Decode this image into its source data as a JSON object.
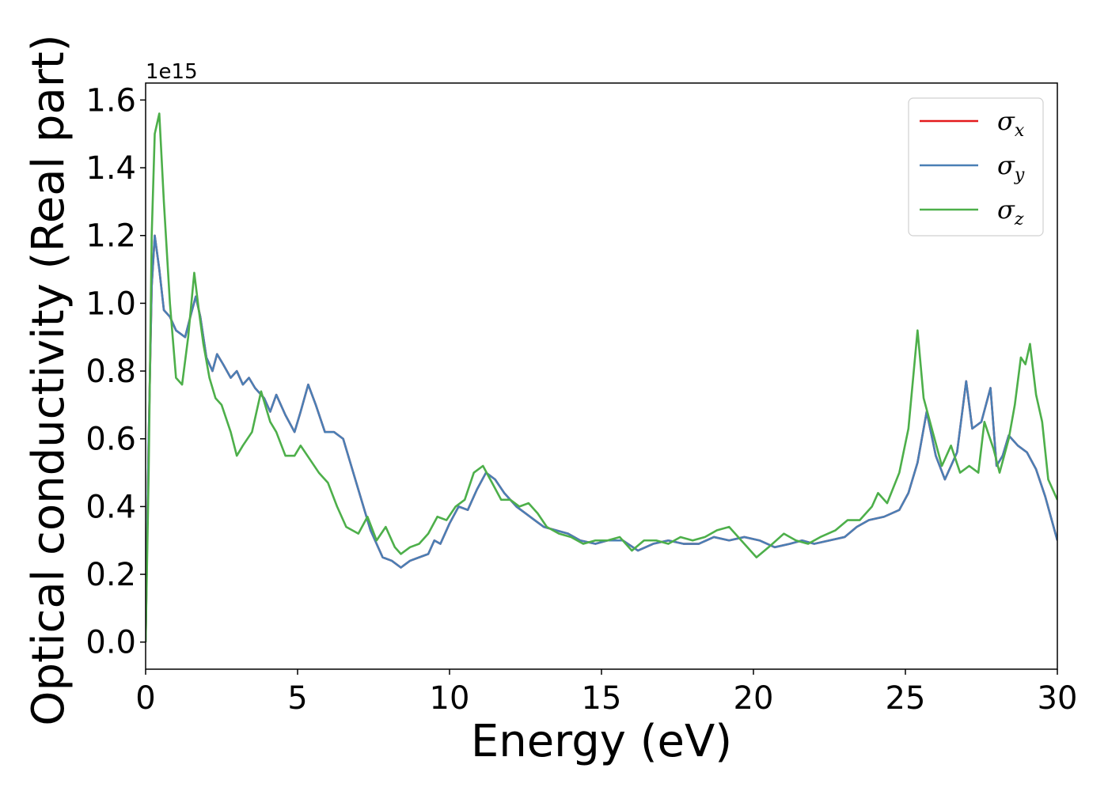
{
  "chart_data": {
    "type": "line",
    "xlabel": "Energy (eV)",
    "ylabel": "Optical conductivity (Real part)",
    "y_offset_label": "1e15",
    "y_scale": 1000000000000000.0,
    "xlim": [
      0,
      30
    ],
    "ylim": [
      -0.08,
      1.65
    ],
    "xticks": [
      0,
      5,
      10,
      15,
      20,
      25,
      30
    ],
    "xtick_labels": [
      "0",
      "5",
      "10",
      "15",
      "20",
      "25",
      "30"
    ],
    "yticks": [
      0.0,
      0.2,
      0.4,
      0.6,
      0.8,
      1.0,
      1.2,
      1.4,
      1.6
    ],
    "ytick_labels": [
      "0.0",
      "0.2",
      "0.4",
      "0.6",
      "0.8",
      "1.0",
      "1.2",
      "1.4",
      "1.6"
    ],
    "grid": false,
    "legend_position": "top-right",
    "series": [
      {
        "name": "σ",
        "subscript": "x",
        "color": "#e41a1c",
        "x": [
          0.0,
          0.1,
          0.2,
          0.3,
          0.45,
          0.6,
          0.8,
          1.0,
          1.3,
          1.5,
          1.65,
          1.8,
          2.0,
          2.2,
          2.35,
          2.55,
          2.8,
          3.0,
          3.2,
          3.4,
          3.6,
          3.9,
          4.1,
          4.3,
          4.6,
          4.9,
          5.1,
          5.35,
          5.6,
          5.9,
          6.2,
          6.5,
          7.0,
          7.4,
          7.8,
          8.1,
          8.4,
          8.7,
          9.0,
          9.3,
          9.5,
          9.7,
          10.0,
          10.3,
          10.6,
          10.9,
          11.2,
          11.5,
          11.8,
          12.2,
          12.5,
          12.8,
          13.1,
          13.5,
          13.9,
          14.3,
          14.8,
          15.2,
          15.7,
          16.2,
          16.7,
          17.2,
          17.7,
          18.2,
          18.7,
          19.2,
          19.7,
          20.2,
          20.7,
          21.2,
          21.6,
          22.0,
          22.5,
          23.0,
          23.4,
          23.8,
          24.3,
          24.8,
          25.1,
          25.4,
          25.7,
          26.0,
          26.3,
          26.7,
          27.0,
          27.2,
          27.5,
          27.8,
          28.0,
          28.2,
          28.4,
          28.7,
          29.0,
          29.3,
          29.6,
          30.0
        ],
        "y": [
          0.0,
          0.6,
          1.05,
          1.2,
          1.1,
          0.98,
          0.96,
          0.92,
          0.9,
          0.97,
          1.02,
          0.96,
          0.84,
          0.8,
          0.85,
          0.82,
          0.78,
          0.8,
          0.76,
          0.78,
          0.75,
          0.72,
          0.68,
          0.73,
          0.67,
          0.62,
          0.68,
          0.76,
          0.7,
          0.62,
          0.62,
          0.6,
          0.45,
          0.33,
          0.25,
          0.24,
          0.22,
          0.24,
          0.25,
          0.26,
          0.3,
          0.29,
          0.35,
          0.4,
          0.39,
          0.45,
          0.5,
          0.48,
          0.44,
          0.4,
          0.38,
          0.36,
          0.34,
          0.33,
          0.32,
          0.3,
          0.29,
          0.3,
          0.3,
          0.27,
          0.29,
          0.3,
          0.29,
          0.29,
          0.31,
          0.3,
          0.31,
          0.3,
          0.28,
          0.29,
          0.3,
          0.29,
          0.3,
          0.31,
          0.34,
          0.36,
          0.37,
          0.39,
          0.44,
          0.53,
          0.68,
          0.55,
          0.48,
          0.56,
          0.77,
          0.63,
          0.65,
          0.75,
          0.52,
          0.55,
          0.61,
          0.58,
          0.56,
          0.51,
          0.43,
          0.3
        ]
      },
      {
        "name": "σ",
        "subscript": "y",
        "color": "#4a7fb5",
        "x": [
          0.0,
          0.1,
          0.2,
          0.3,
          0.45,
          0.6,
          0.8,
          1.0,
          1.3,
          1.5,
          1.65,
          1.8,
          2.0,
          2.2,
          2.35,
          2.55,
          2.8,
          3.0,
          3.2,
          3.4,
          3.6,
          3.9,
          4.1,
          4.3,
          4.6,
          4.9,
          5.1,
          5.35,
          5.6,
          5.9,
          6.2,
          6.5,
          7.0,
          7.4,
          7.8,
          8.1,
          8.4,
          8.7,
          9.0,
          9.3,
          9.5,
          9.7,
          10.0,
          10.3,
          10.6,
          10.9,
          11.2,
          11.5,
          11.8,
          12.2,
          12.5,
          12.8,
          13.1,
          13.5,
          13.9,
          14.3,
          14.8,
          15.2,
          15.7,
          16.2,
          16.7,
          17.2,
          17.7,
          18.2,
          18.7,
          19.2,
          19.7,
          20.2,
          20.7,
          21.2,
          21.6,
          22.0,
          22.5,
          23.0,
          23.4,
          23.8,
          24.3,
          24.8,
          25.1,
          25.4,
          25.7,
          26.0,
          26.3,
          26.7,
          27.0,
          27.2,
          27.5,
          27.8,
          28.0,
          28.2,
          28.4,
          28.7,
          29.0,
          29.3,
          29.6,
          30.0
        ],
        "y": [
          0.0,
          0.6,
          1.05,
          1.2,
          1.1,
          0.98,
          0.96,
          0.92,
          0.9,
          0.97,
          1.02,
          0.96,
          0.84,
          0.8,
          0.85,
          0.82,
          0.78,
          0.8,
          0.76,
          0.78,
          0.75,
          0.72,
          0.68,
          0.73,
          0.67,
          0.62,
          0.68,
          0.76,
          0.7,
          0.62,
          0.62,
          0.6,
          0.45,
          0.33,
          0.25,
          0.24,
          0.22,
          0.24,
          0.25,
          0.26,
          0.3,
          0.29,
          0.35,
          0.4,
          0.39,
          0.45,
          0.5,
          0.48,
          0.44,
          0.4,
          0.38,
          0.36,
          0.34,
          0.33,
          0.32,
          0.3,
          0.29,
          0.3,
          0.3,
          0.27,
          0.29,
          0.3,
          0.29,
          0.29,
          0.31,
          0.3,
          0.31,
          0.3,
          0.28,
          0.29,
          0.3,
          0.29,
          0.3,
          0.31,
          0.34,
          0.36,
          0.37,
          0.39,
          0.44,
          0.53,
          0.68,
          0.55,
          0.48,
          0.56,
          0.77,
          0.63,
          0.65,
          0.75,
          0.52,
          0.55,
          0.61,
          0.58,
          0.56,
          0.51,
          0.43,
          0.3
        ]
      },
      {
        "name": "σ",
        "subscript": "z",
        "color": "#4daf4a",
        "x": [
          0.0,
          0.1,
          0.2,
          0.3,
          0.45,
          0.6,
          0.8,
          1.0,
          1.2,
          1.4,
          1.6,
          1.75,
          1.9,
          2.1,
          2.3,
          2.5,
          2.8,
          3.0,
          3.2,
          3.5,
          3.8,
          4.1,
          4.3,
          4.6,
          4.9,
          5.1,
          5.4,
          5.7,
          6.0,
          6.3,
          6.6,
          7.0,
          7.3,
          7.6,
          7.9,
          8.2,
          8.4,
          8.7,
          9.0,
          9.3,
          9.6,
          9.9,
          10.2,
          10.5,
          10.8,
          11.1,
          11.4,
          11.7,
          12.0,
          12.3,
          12.6,
          12.9,
          13.2,
          13.6,
          14.0,
          14.4,
          14.8,
          15.2,
          15.6,
          16.0,
          16.4,
          16.8,
          17.2,
          17.6,
          18.0,
          18.4,
          18.8,
          19.2,
          19.6,
          20.1,
          20.5,
          21.0,
          21.4,
          21.8,
          22.2,
          22.7,
          23.1,
          23.5,
          23.9,
          24.1,
          24.4,
          24.8,
          25.1,
          25.4,
          25.6,
          25.9,
          26.2,
          26.5,
          26.8,
          27.1,
          27.4,
          27.6,
          27.9,
          28.1,
          28.4,
          28.6,
          28.8,
          28.95,
          29.1,
          29.3,
          29.5,
          29.7,
          30.0
        ],
        "y": [
          0.0,
          0.5,
          1.2,
          1.5,
          1.56,
          1.3,
          1.0,
          0.78,
          0.76,
          0.9,
          1.09,
          0.98,
          0.88,
          0.78,
          0.72,
          0.7,
          0.62,
          0.55,
          0.58,
          0.62,
          0.74,
          0.65,
          0.62,
          0.55,
          0.55,
          0.58,
          0.54,
          0.5,
          0.47,
          0.4,
          0.34,
          0.32,
          0.37,
          0.3,
          0.34,
          0.28,
          0.26,
          0.28,
          0.29,
          0.32,
          0.37,
          0.36,
          0.4,
          0.42,
          0.5,
          0.52,
          0.47,
          0.42,
          0.42,
          0.4,
          0.41,
          0.38,
          0.34,
          0.32,
          0.31,
          0.29,
          0.3,
          0.3,
          0.31,
          0.27,
          0.3,
          0.3,
          0.29,
          0.31,
          0.3,
          0.31,
          0.33,
          0.34,
          0.3,
          0.25,
          0.28,
          0.32,
          0.3,
          0.29,
          0.31,
          0.33,
          0.36,
          0.36,
          0.4,
          0.44,
          0.41,
          0.5,
          0.63,
          0.92,
          0.72,
          0.62,
          0.52,
          0.58,
          0.5,
          0.52,
          0.5,
          0.65,
          0.57,
          0.5,
          0.6,
          0.7,
          0.84,
          0.82,
          0.88,
          0.73,
          0.65,
          0.48,
          0.42
        ]
      }
    ]
  }
}
